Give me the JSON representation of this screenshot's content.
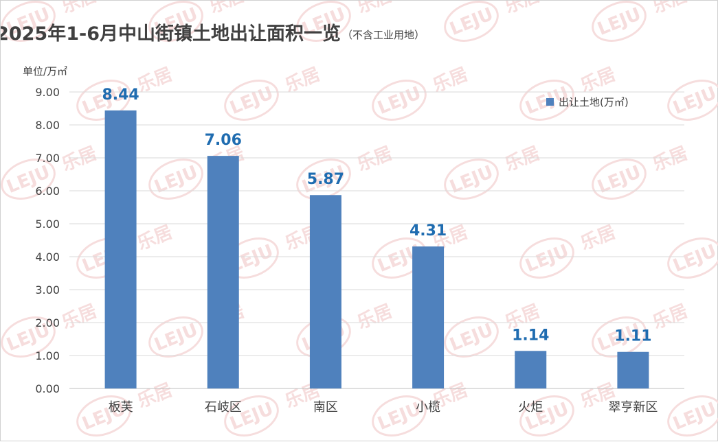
{
  "chart_data": {
    "type": "bar",
    "title": "2025年1-6月中山街镇土地出让面积一览",
    "subtitle": "（不含工业用地）",
    "ylabel": "单位/万㎡",
    "categories": [
      "板芙",
      "石岐区",
      "南区",
      "小榄",
      "火炬",
      "翠亨新区"
    ],
    "series": [
      {
        "name": "出让土地(万㎡)",
        "values": [
          8.44,
          7.06,
          5.87,
          4.31,
          1.14,
          1.11
        ]
      }
    ],
    "data_labels": [
      "8.44",
      "7.06",
      "5.87",
      "4.31",
      "1.14",
      "1.11"
    ],
    "ylim": [
      0,
      9
    ],
    "yticks": [
      "0.00",
      "1.00",
      "2.00",
      "3.00",
      "4.00",
      "5.00",
      "6.00",
      "7.00",
      "8.00",
      "9.00"
    ],
    "grid": true,
    "legend_position": "top-right",
    "bar_color": "#4f81bd",
    "label_color": "#1f6cb0"
  },
  "watermark": {
    "logo": "LEJU",
    "text": "乐居"
  }
}
